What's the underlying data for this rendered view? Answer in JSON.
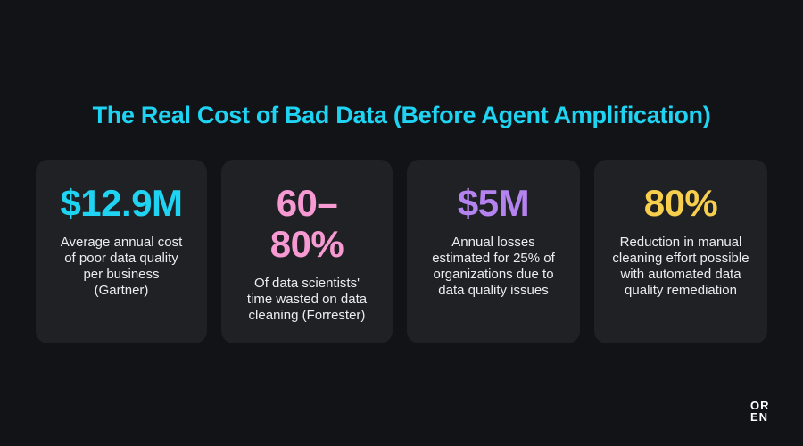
{
  "page": {
    "title": "The Real Cost of Bad Data (Before Agent Amplification)"
  },
  "colors": {
    "background": "#121317",
    "card": "#202125",
    "title": "#1fd3f2"
  },
  "cards": [
    {
      "stat": "$12.9M",
      "color": "#1fd3f2",
      "description": "Average annual cost of poor data quality per business (Gartner)"
    },
    {
      "stat": "60–80%",
      "color": "#f79ad3",
      "description": "Of data scientists' time wasted on data cleaning (Forrester)"
    },
    {
      "stat": "$5M",
      "color": "#b583f0",
      "description": "Annual losses estimated for 25% of organizations due to data quality issues"
    },
    {
      "stat": "80%",
      "color": "#f7cf4d",
      "description": "Reduction in manual cleaning effort possible with automated data quality remediation"
    }
  ],
  "logo": {
    "line1": "OR",
    "line2": "EN"
  }
}
